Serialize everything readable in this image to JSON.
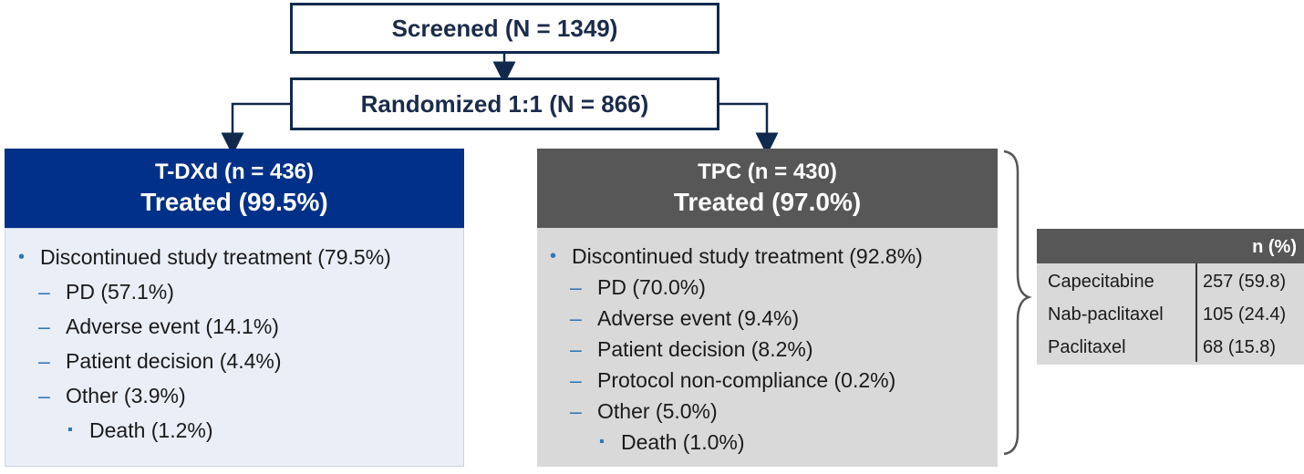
{
  "screened": "Screened (N = 1349)",
  "randomized": "Randomized 1:1 (N = 866)",
  "tdxd": {
    "title": "T-DXd (n = 436)",
    "treated": "Treated (99.5%)",
    "items": [
      {
        "level": 0,
        "text": "Discontinued study treatment (79.5%)"
      },
      {
        "level": 1,
        "text": "PD (57.1%)"
      },
      {
        "level": 1,
        "text": "Adverse event (14.1%)"
      },
      {
        "level": 1,
        "text": "Patient decision (4.4%)"
      },
      {
        "level": 1,
        "text": "Other (3.9%)"
      },
      {
        "level": 2,
        "text": "Death (1.2%)"
      }
    ]
  },
  "tpc": {
    "title": "TPC (n = 430)",
    "treated": "Treated (97.0%)",
    "items": [
      {
        "level": 0,
        "text": "Discontinued study treatment (92.8%)"
      },
      {
        "level": 1,
        "text": "PD (70.0%)"
      },
      {
        "level": 1,
        "text": "Adverse event (9.4%)"
      },
      {
        "level": 1,
        "text": "Patient decision (8.2%)"
      },
      {
        "level": 1,
        "text": "Protocol non-compliance (0.2%)"
      },
      {
        "level": 1,
        "text": "Other (5.0%)"
      },
      {
        "level": 2,
        "text": "Death (1.0%)"
      }
    ]
  },
  "tpc_table": {
    "header": "n (%)",
    "rows": [
      {
        "drug": "Capecitabine",
        "n": "257 (59.8)"
      },
      {
        "drug": "Nab-paclitaxel",
        "n": "105 (24.4)"
      },
      {
        "drug": "Paclitaxel",
        "n": "68 (15.8)"
      }
    ]
  },
  "colors": {
    "tdxd": "#003087",
    "tpc": "#575757",
    "connector": "#10294d",
    "bullet": "#2f75b5"
  }
}
